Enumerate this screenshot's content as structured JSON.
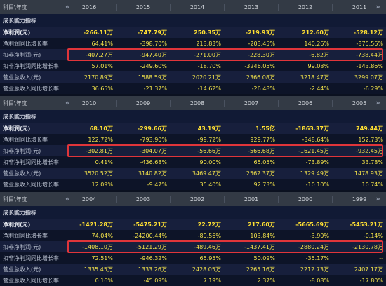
{
  "panels": [
    {
      "header_label": "科目\\年度",
      "nav_prev": "«",
      "nav_next": "»",
      "years": [
        "2016",
        "2015",
        "2014",
        "2013",
        "2012",
        "2011"
      ],
      "section": "成长能力指标",
      "rows": [
        {
          "label": "净利润(元)",
          "values": [
            "-266.11万",
            "-747.79万",
            "250.35万",
            "-219.93万",
            "212.60万",
            "-528.12万"
          ]
        },
        {
          "label": "净利润同比增长率",
          "values": [
            "64.41%",
            "-398.70%",
            "213.83%",
            "-203.45%",
            "140.26%",
            "-875.56%"
          ]
        },
        {
          "label": "扣非净利润(元)",
          "values": [
            "-407.27万",
            "-947.40万",
            "-271.00万",
            "-228.30万",
            "-6.82万",
            "-738.44万"
          ]
        },
        {
          "label": "扣非净利润同比增长率",
          "values": [
            "57.01%",
            "-249.60%",
            "-18.70%",
            "-3246.05%",
            "99.08%",
            "-143.86%"
          ]
        },
        {
          "label": "营业总收入(元)",
          "values": [
            "2170.89万",
            "1588.59万",
            "2020.21万",
            "2366.08万",
            "3218.47万",
            "3299.07万"
          ]
        },
        {
          "label": "营业总收入同比增长率",
          "values": [
            "36.65%",
            "-21.37%",
            "-14.62%",
            "-26.48%",
            "-2.44%",
            "-6.29%"
          ]
        }
      ]
    },
    {
      "header_label": "科目\\年度",
      "nav_prev": "«",
      "nav_next": "»",
      "years": [
        "2010",
        "2009",
        "2008",
        "2007",
        "2006",
        "2005"
      ],
      "section": "成长能力指标",
      "rows": [
        {
          "label": "净利润(元)",
          "values": [
            "68.10万",
            "-299.66万",
            "43.19万",
            "1.55亿",
            "-1863.37万",
            "749.44万"
          ]
        },
        {
          "label": "净利润同比增长率",
          "values": [
            "122.72%",
            "-793.90%",
            "-99.72%",
            "929.77%",
            "-348.64%",
            "152.73%"
          ]
        },
        {
          "label": "扣非净利润(元)",
          "values": [
            "-302.81万",
            "-304.07万",
            "-56.66万",
            "-566.68万",
            "-1621.45万",
            "-932.45万"
          ]
        },
        {
          "label": "扣非净利润同比增长率",
          "values": [
            "0.41%",
            "-436.68%",
            "90.00%",
            "65.05%",
            "-73.89%",
            "33.78%"
          ]
        },
        {
          "label": "营业总收入(元)",
          "values": [
            "3520.52万",
            "3140.82万",
            "3469.47万",
            "2562.37万",
            "1329.49万",
            "1478.93万"
          ]
        },
        {
          "label": "营业总收入同比增长率",
          "values": [
            "12.09%",
            "-9.47%",
            "35.40%",
            "92.73%",
            "-10.10%",
            "10.74%"
          ]
        }
      ]
    },
    {
      "header_label": "科目\\年度",
      "nav_prev": "«",
      "nav_next": "»",
      "years": [
        "2004",
        "2003",
        "2002",
        "2001",
        "2000",
        "1999"
      ],
      "section": "成长能力指标",
      "rows": [
        {
          "label": "净利润(元)",
          "values": [
            "-1421.28万",
            "-5475.21万",
            "22.72万",
            "217.60万",
            "-5665.69万",
            "-5453.21万"
          ]
        },
        {
          "label": "净利润同比增长率",
          "values": [
            "74.04%",
            "-24200.44%",
            "-89.56%",
            "103.84%",
            "-3.90%",
            "-0.14%"
          ]
        },
        {
          "label": "扣非净利润(元)",
          "values": [
            "-1408.10万",
            "-5121.29万",
            "-489.46万",
            "-1437.41万",
            "-2880.24万",
            "-2130.78万"
          ]
        },
        {
          "label": "扣非净利润同比增长率",
          "values": [
            "72.51%",
            "-946.32%",
            "65.95%",
            "50.09%",
            "-35.17%",
            "--"
          ]
        },
        {
          "label": "营业总收入(元)",
          "values": [
            "1335.45万",
            "1333.26万",
            "2428.05万",
            "2265.16万",
            "2212.73万",
            "2407.17万"
          ]
        },
        {
          "label": "营业总收入同比增长率",
          "values": [
            "0.16%",
            "-45.09%",
            "7.19%",
            "2.37%",
            "-8.08%",
            "-17.80%"
          ]
        }
      ]
    }
  ],
  "highlight_color": "#e0353a",
  "value_color": "#f2e24a"
}
